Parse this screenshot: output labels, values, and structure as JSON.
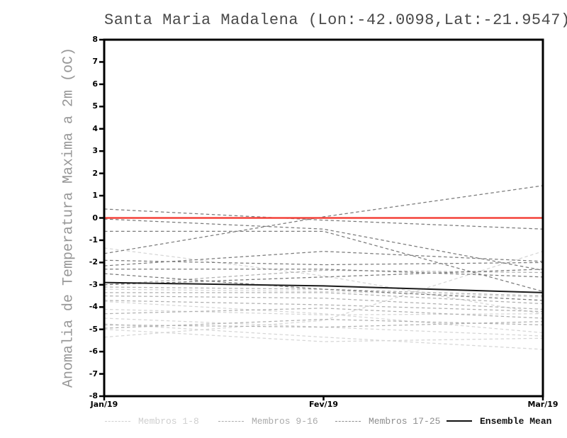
{
  "chart_data": {
    "type": "line",
    "title": "Santa Maria Madalena (Lon:-42.0098,Lat:-21.9547)",
    "ylabel": "Anomalia de Temperatura Maxima a 2m (oC)",
    "xlabel": "",
    "x_categories": [
      "Jan/19",
      "Fev/19",
      "Mar/19"
    ],
    "ylim": [
      -8,
      8
    ],
    "ytick_labels": [
      "8",
      "7",
      "6",
      "5",
      "4",
      "3",
      "2",
      "1",
      "0",
      "-1",
      "-2",
      "-3",
      "-4",
      "-5",
      "-6",
      "-7",
      "-8"
    ],
    "grid": "off",
    "legend_position": "bottom",
    "zero_line": {
      "name": "zero-reference",
      "color": "#f4423a",
      "values": [
        0,
        0,
        0
      ]
    },
    "ensemble_mean": {
      "name": "Ensemble Mean",
      "color": "#1a1a1a",
      "values": [
        -2.9,
        -3.05,
        -3.35
      ]
    },
    "groups": [
      {
        "name": "Membros 1-8",
        "color": "#d6d6d6",
        "members": [
          [
            -1.35,
            -2.6,
            -4.3
          ],
          [
            -3.2,
            -3.3,
            -3.55
          ],
          [
            -3.75,
            -4.3,
            -5.15
          ],
          [
            -4.1,
            -4.35,
            -4.3
          ],
          [
            -4.5,
            -4.9,
            -5.3
          ],
          [
            -4.75,
            -5.35,
            -5.9
          ],
          [
            -5.35,
            -4.6,
            -1.5
          ],
          [
            -5.0,
            -5.55,
            -5.4
          ]
        ]
      },
      {
        "name": "Membros 9-16",
        "color": "#b0b0b0",
        "members": [
          [
            -3.0,
            -2.35,
            -2.45
          ],
          [
            -3.1,
            -3.2,
            -3.5
          ],
          [
            -3.35,
            -3.35,
            -3.85
          ],
          [
            -3.5,
            -3.6,
            -4.1
          ],
          [
            -3.7,
            -3.9,
            -4.2
          ],
          [
            -4.3,
            -4.05,
            -4.5
          ],
          [
            -4.8,
            -4.9,
            -4.65
          ],
          [
            -4.95,
            -4.55,
            -4.8
          ]
        ]
      },
      {
        "name": "Membros 17-25",
        "color": "#7a7a7a",
        "members": [
          [
            0.4,
            -0.1,
            -0.5
          ],
          [
            -0.05,
            -0.5,
            -2.35
          ],
          [
            -1.6,
            0.05,
            1.45
          ],
          [
            -1.9,
            -2.1,
            -2.0
          ],
          [
            -2.15,
            -1.5,
            -1.95
          ],
          [
            -2.3,
            -2.3,
            -2.65
          ],
          [
            -0.6,
            -0.6,
            -3.3
          ],
          [
            -3.0,
            -2.65,
            -2.3
          ],
          [
            -2.5,
            -3.2,
            -3.7
          ]
        ]
      }
    ],
    "legend": [
      {
        "label": "Membros 1-8",
        "color": "#cfcfcf",
        "style": "dashed"
      },
      {
        "label": "Membros 9-16",
        "color": "#ababab",
        "style": "dashed"
      },
      {
        "label": "Membros 17-25",
        "color": "#8d8d8d",
        "style": "dashed"
      },
      {
        "label": "Ensemble Mean",
        "color": "#111111",
        "style": "solid"
      }
    ]
  }
}
